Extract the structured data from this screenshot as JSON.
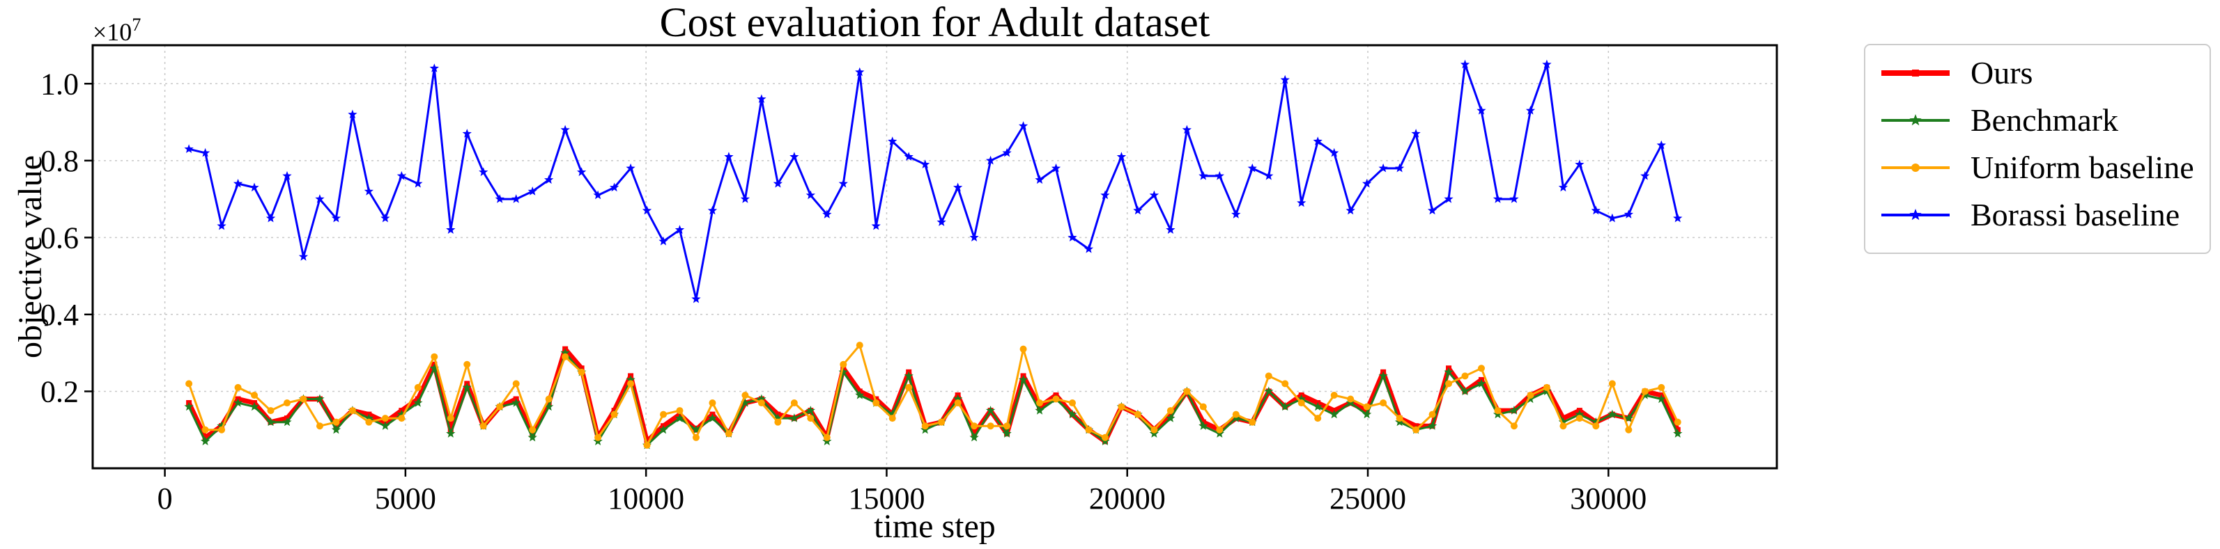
{
  "chart_data": {
    "type": "line",
    "title": "Cost evaluation for Adult dataset",
    "xlabel": "time step",
    "ylabel": "objective value",
    "y_offset_label": "×10",
    "y_offset_exponent": "7",
    "xlim": [
      -1500,
      33500
    ],
    "ylim": [
      0.0,
      1.1
    ],
    "xticks": [
      0,
      5000,
      10000,
      15000,
      20000,
      25000,
      30000
    ],
    "xtick_labels": [
      "0",
      "5000",
      "10000",
      "15000",
      "20000",
      "25000",
      "30000"
    ],
    "yticks": [
      0.2,
      0.4,
      0.6,
      0.8,
      1.0
    ],
    "ytick_labels": [
      "0.2",
      "0.4",
      "0.6",
      "0.8",
      "1.0"
    ],
    "grid": true,
    "legend_position": "outside-right-top",
    "x_start": 500,
    "x_step": 340,
    "series": [
      {
        "name": "Ours",
        "color": "#ff0000",
        "marker": "square",
        "stroke_width": 7,
        "values": [
          0.17,
          0.08,
          0.11,
          0.18,
          0.17,
          0.12,
          0.13,
          0.18,
          0.18,
          0.11,
          0.15,
          0.14,
          0.12,
          0.15,
          0.18,
          0.27,
          0.1,
          0.22,
          0.11,
          0.16,
          0.18,
          0.09,
          0.17,
          0.31,
          0.26,
          0.08,
          0.15,
          0.24,
          0.07,
          0.11,
          0.14,
          0.1,
          0.14,
          0.09,
          0.17,
          0.18,
          0.14,
          0.13,
          0.15,
          0.08,
          0.26,
          0.2,
          0.18,
          0.14,
          0.25,
          0.11,
          0.12,
          0.19,
          0.09,
          0.15,
          0.09,
          0.24,
          0.16,
          0.19,
          0.14,
          0.1,
          0.07,
          0.16,
          0.14,
          0.1,
          0.14,
          0.2,
          0.12,
          0.1,
          0.13,
          0.12,
          0.2,
          0.16,
          0.19,
          0.17,
          0.15,
          0.17,
          0.15,
          0.25,
          0.13,
          0.11,
          0.11,
          0.26,
          0.2,
          0.23,
          0.15,
          0.15,
          0.19,
          0.21,
          0.13,
          0.15,
          0.12,
          0.14,
          0.13,
          0.2,
          0.19,
          0.1
        ]
      },
      {
        "name": "Benchmark",
        "color": "#1e7d1e",
        "marker": "star",
        "stroke_width": 3,
        "values": [
          0.16,
          0.07,
          0.11,
          0.17,
          0.16,
          0.12,
          0.12,
          0.18,
          0.18,
          0.1,
          0.15,
          0.13,
          0.11,
          0.14,
          0.17,
          0.26,
          0.09,
          0.21,
          0.11,
          0.16,
          0.17,
          0.08,
          0.16,
          0.3,
          0.25,
          0.07,
          0.14,
          0.23,
          0.06,
          0.1,
          0.13,
          0.1,
          0.13,
          0.09,
          0.17,
          0.18,
          0.13,
          0.13,
          0.15,
          0.07,
          0.25,
          0.19,
          0.17,
          0.14,
          0.24,
          0.1,
          0.12,
          0.18,
          0.08,
          0.15,
          0.09,
          0.23,
          0.15,
          0.18,
          0.14,
          0.1,
          0.07,
          0.16,
          0.14,
          0.09,
          0.13,
          0.2,
          0.11,
          0.09,
          0.13,
          0.12,
          0.2,
          0.16,
          0.18,
          0.16,
          0.14,
          0.17,
          0.14,
          0.24,
          0.12,
          0.1,
          0.11,
          0.25,
          0.2,
          0.22,
          0.14,
          0.15,
          0.18,
          0.2,
          0.12,
          0.14,
          0.12,
          0.14,
          0.13,
          0.19,
          0.18,
          0.09
        ]
      },
      {
        "name": "Uniform baseline",
        "color": "#ffa500",
        "marker": "circle",
        "stroke_width": 3,
        "values": [
          0.22,
          0.1,
          0.1,
          0.21,
          0.19,
          0.15,
          0.17,
          0.18,
          0.11,
          0.12,
          0.15,
          0.12,
          0.13,
          0.13,
          0.21,
          0.29,
          0.13,
          0.27,
          0.11,
          0.16,
          0.22,
          0.1,
          0.18,
          0.29,
          0.25,
          0.08,
          0.14,
          0.22,
          0.06,
          0.14,
          0.15,
          0.08,
          0.17,
          0.09,
          0.19,
          0.17,
          0.12,
          0.17,
          0.13,
          0.08,
          0.27,
          0.32,
          0.17,
          0.13,
          0.21,
          0.11,
          0.12,
          0.17,
          0.11,
          0.11,
          0.11,
          0.31,
          0.17,
          0.18,
          0.17,
          0.1,
          0.08,
          0.16,
          0.14,
          0.1,
          0.15,
          0.2,
          0.16,
          0.1,
          0.14,
          0.12,
          0.24,
          0.22,
          0.17,
          0.13,
          0.19,
          0.18,
          0.16,
          0.17,
          0.13,
          0.1,
          0.14,
          0.22,
          0.24,
          0.26,
          0.15,
          0.11,
          0.19,
          0.21,
          0.11,
          0.13,
          0.11,
          0.22,
          0.1,
          0.2,
          0.21,
          0.12
        ]
      },
      {
        "name": "Borassi baseline",
        "color": "#0000ff",
        "marker": "star",
        "stroke_width": 3,
        "values": [
          0.83,
          0.82,
          0.63,
          0.74,
          0.73,
          0.65,
          0.76,
          0.55,
          0.7,
          0.65,
          0.92,
          0.72,
          0.65,
          0.76,
          0.74,
          1.04,
          0.62,
          0.87,
          0.77,
          0.7,
          0.7,
          0.72,
          0.75,
          0.88,
          0.77,
          0.71,
          0.73,
          0.78,
          0.67,
          0.59,
          0.62,
          0.44,
          0.67,
          0.81,
          0.7,
          0.96,
          0.74,
          0.81,
          0.71,
          0.66,
          0.74,
          1.03,
          0.63,
          0.85,
          0.81,
          0.79,
          0.64,
          0.73,
          0.6,
          0.8,
          0.82,
          0.89,
          0.75,
          0.78,
          0.6,
          0.57,
          0.71,
          0.81,
          0.67,
          0.71,
          0.62,
          0.88,
          0.76,
          0.76,
          0.66,
          0.78,
          0.76,
          1.01,
          0.69,
          0.85,
          0.82,
          0.67,
          0.74,
          0.78,
          0.78,
          0.87,
          0.67,
          0.7,
          1.05,
          0.93,
          0.7,
          0.7,
          0.93,
          1.05,
          0.73,
          0.79,
          0.67,
          0.65,
          0.66,
          0.76,
          0.84,
          0.65
        ]
      }
    ]
  }
}
